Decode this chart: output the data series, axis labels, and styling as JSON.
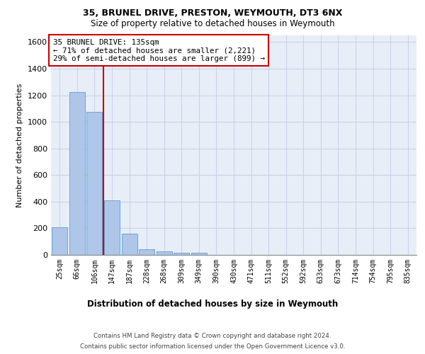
{
  "title1": "35, BRUNEL DRIVE, PRESTON, WEYMOUTH, DT3 6NX",
  "title2": "Size of property relative to detached houses in Weymouth",
  "xlabel": "Distribution of detached houses by size in Weymouth",
  "ylabel": "Number of detached properties",
  "footer1": "Contains HM Land Registry data © Crown copyright and database right 2024.",
  "footer2": "Contains public sector information licensed under the Open Government Licence v3.0.",
  "categories": [
    "25sqm",
    "66sqm",
    "106sqm",
    "147sqm",
    "187sqm",
    "228sqm",
    "268sqm",
    "309sqm",
    "349sqm",
    "390sqm",
    "430sqm",
    "471sqm",
    "511sqm",
    "552sqm",
    "592sqm",
    "633sqm",
    "673sqm",
    "714sqm",
    "754sqm",
    "795sqm",
    "835sqm"
  ],
  "values": [
    205,
    1225,
    1075,
    410,
    162,
    45,
    27,
    18,
    15,
    0,
    0,
    0,
    0,
    0,
    0,
    0,
    0,
    0,
    0,
    0,
    0
  ],
  "bar_color": "#aec6e8",
  "bar_edge_color": "#5a9fd4",
  "ylim": [
    0,
    1650
  ],
  "yticks": [
    0,
    200,
    400,
    600,
    800,
    1000,
    1200,
    1400,
    1600
  ],
  "property_line_x": 2.5,
  "annotation_title": "35 BRUNEL DRIVE: 135sqm",
  "annotation_line1": "← 71% of detached houses are smaller (2,221)",
  "annotation_line2": "29% of semi-detached houses are larger (899) →",
  "red_line_color": "#cc0000",
  "grid_color": "#c8d4e8",
  "bg_color": "#e8eef8"
}
